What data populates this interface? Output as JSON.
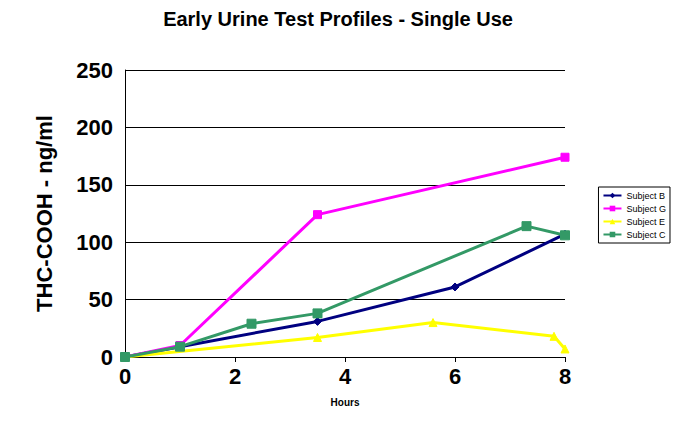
{
  "chart_data": {
    "type": "line",
    "title": "Early Urine Test Profiles - Single Use",
    "x_label": "Hours",
    "y_label": "THC-COOH - ng/ml",
    "xlim": [
      0,
      8
    ],
    "xticks": [
      0,
      2,
      4,
      6,
      8
    ],
    "ylim": [
      0,
      250
    ],
    "yticks": [
      0,
      50,
      100,
      150,
      200,
      250
    ],
    "grid": true,
    "legend": "right",
    "series": [
      {
        "name": "Subject B",
        "color": "#000080",
        "marker": "diamond",
        "x": [
          0,
          1,
          3.5,
          6,
          8
        ],
        "values": [
          0,
          9,
          31,
          61,
          107
        ]
      },
      {
        "name": "Subject G",
        "color": "#ff00ff",
        "marker": "square",
        "x": [
          0,
          1,
          3.5,
          8
        ],
        "values": [
          0,
          10,
          124,
          174
        ]
      },
      {
        "name": "Subject E",
        "color": "#ffff00",
        "marker": "triangle",
        "x": [
          0,
          3.5,
          5.6,
          7.8,
          8
        ],
        "values": [
          0,
          17,
          30,
          18,
          7
        ]
      },
      {
        "name": "Subject C",
        "color": "#339966",
        "marker": "x",
        "x": [
          0,
          1,
          2.3,
          3.5,
          7.3,
          8
        ],
        "values": [
          0,
          9,
          29,
          38,
          114,
          106
        ]
      }
    ]
  }
}
